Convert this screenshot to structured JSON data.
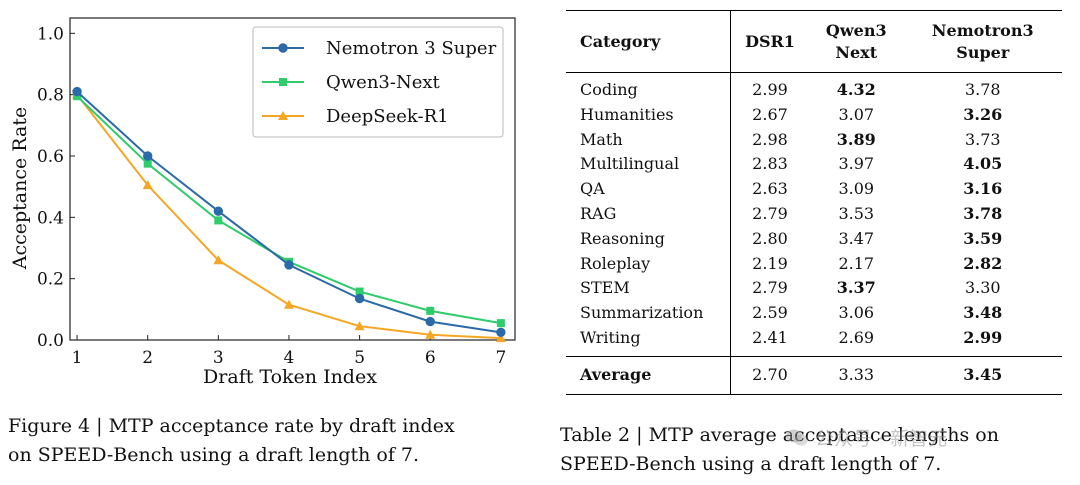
{
  "chart_data": {
    "type": "line",
    "xlabel": "Draft Token Index",
    "ylabel": "Acceptance Rate",
    "x": [
      1,
      2,
      3,
      4,
      5,
      6,
      7
    ],
    "xlim": [
      0.9,
      7.2
    ],
    "ylim": [
      0.0,
      1.05
    ],
    "yticks": [
      0.0,
      0.2,
      0.4,
      0.6,
      0.8,
      1.0
    ],
    "ytick_labels": [
      "0.0",
      "0.2",
      "0.4",
      "0.6",
      "0.8",
      "1.0"
    ],
    "xtick_labels": [
      "1",
      "2",
      "3",
      "4",
      "5",
      "6",
      "7"
    ],
    "legend_position": "top-right",
    "grid": false,
    "series": [
      {
        "name": "Nemotron 3 Super",
        "color": "#2b6aa9",
        "marker": "circle",
        "values": [
          0.81,
          0.6,
          0.42,
          0.245,
          0.135,
          0.06,
          0.025
        ]
      },
      {
        "name": "Qwen3-Next",
        "color": "#2ecc6a",
        "marker": "square",
        "values": [
          0.795,
          0.575,
          0.39,
          0.255,
          0.158,
          0.095,
          0.055
        ]
      },
      {
        "name": "DeepSeek-R1",
        "color": "#f5a623",
        "marker": "triangle",
        "values": [
          0.8,
          0.505,
          0.26,
          0.115,
          0.045,
          0.017,
          0.006
        ]
      }
    ]
  },
  "figure_caption": {
    "line1": "Figure 4 | MTP acceptance rate by draft index",
    "line2": "on SPEED-Bench using a draft length of 7."
  },
  "table": {
    "headers": {
      "category": "Category",
      "dsr1": "DSR1",
      "qwen_l1": "Qwen3",
      "qwen_l2": "Next",
      "nemo_l1": "Nemotron3",
      "nemo_l2": "Super"
    },
    "rows": [
      {
        "category": "Coding",
        "dsr1": "2.99",
        "qwen": "4.32",
        "nemo": "3.78",
        "best": "qwen"
      },
      {
        "category": "Humanities",
        "dsr1": "2.67",
        "qwen": "3.07",
        "nemo": "3.26",
        "best": "nemo"
      },
      {
        "category": "Math",
        "dsr1": "2.98",
        "qwen": "3.89",
        "nemo": "3.73",
        "best": "qwen"
      },
      {
        "category": "Multilingual",
        "dsr1": "2.83",
        "qwen": "3.97",
        "nemo": "4.05",
        "best": "nemo"
      },
      {
        "category": "QA",
        "dsr1": "2.63",
        "qwen": "3.09",
        "nemo": "3.16",
        "best": "nemo"
      },
      {
        "category": "RAG",
        "dsr1": "2.79",
        "qwen": "3.53",
        "nemo": "3.78",
        "best": "nemo"
      },
      {
        "category": "Reasoning",
        "dsr1": "2.80",
        "qwen": "3.47",
        "nemo": "3.59",
        "best": "nemo"
      },
      {
        "category": "Roleplay",
        "dsr1": "2.19",
        "qwen": "2.17",
        "nemo": "2.82",
        "best": "nemo"
      },
      {
        "category": "STEM",
        "dsr1": "2.79",
        "qwen": "3.37",
        "nemo": "3.30",
        "best": "qwen"
      },
      {
        "category": "Summarization",
        "dsr1": "2.59",
        "qwen": "3.06",
        "nemo": "3.48",
        "best": "nemo"
      },
      {
        "category": "Writing",
        "dsr1": "2.41",
        "qwen": "2.69",
        "nemo": "2.99",
        "best": "nemo"
      }
    ],
    "average": {
      "category": "Average",
      "dsr1": "2.70",
      "qwen": "3.33",
      "nemo": "3.45",
      "best": "nemo"
    }
  },
  "table_caption": {
    "line1": "Table 2 | MTP average acceptance lengths on",
    "line2": "SPEED-Bench using a draft length of 7."
  },
  "watermark": {
    "text": "公众号 · 新智元"
  }
}
